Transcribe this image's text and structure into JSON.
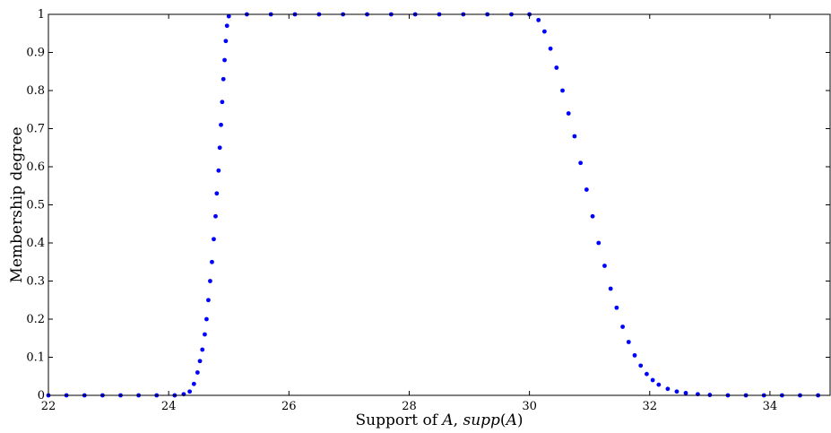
{
  "chart_data": {
    "type": "scatter",
    "xlabel_parts": [
      "Support of ",
      "A",
      ", ",
      "supp",
      "(",
      "A",
      ")"
    ],
    "ylabel": "Membership degree",
    "xlim": [
      22,
      35
    ],
    "ylim": [
      0,
      1
    ],
    "x_ticks": [
      22,
      24,
      26,
      28,
      30,
      32,
      34
    ],
    "x_tick_labels": [
      "22",
      "24",
      "26",
      "28",
      "30",
      "32",
      "34"
    ],
    "y_ticks": [
      0,
      0.1,
      0.2,
      0.3,
      0.4,
      0.5,
      0.6,
      0.7,
      0.8,
      0.9,
      1
    ],
    "y_tick_labels": [
      "0",
      "0.1",
      "0.2",
      "0.3",
      "0.4",
      "0.5",
      "0.6",
      "0.7",
      "0.8",
      "0.9",
      "1"
    ],
    "grid": false,
    "marker_color": "#0000ff",
    "series": [
      {
        "points": [
          [
            22.0,
            0
          ],
          [
            22.3,
            0
          ],
          [
            22.6,
            0
          ],
          [
            22.9,
            0
          ],
          [
            23.2,
            0
          ],
          [
            23.5,
            0
          ],
          [
            23.8,
            0
          ],
          [
            24.1,
            0
          ],
          [
            24.25,
            0.003
          ],
          [
            24.35,
            0.01
          ],
          [
            24.42,
            0.03
          ],
          [
            24.48,
            0.06
          ],
          [
            24.52,
            0.09
          ],
          [
            24.56,
            0.12
          ],
          [
            24.6,
            0.16
          ],
          [
            24.63,
            0.2
          ],
          [
            24.66,
            0.25
          ],
          [
            24.69,
            0.3
          ],
          [
            24.72,
            0.35
          ],
          [
            24.75,
            0.41
          ],
          [
            24.78,
            0.47
          ],
          [
            24.8,
            0.53
          ],
          [
            24.83,
            0.59
          ],
          [
            24.85,
            0.65
          ],
          [
            24.87,
            0.71
          ],
          [
            24.89,
            0.77
          ],
          [
            24.91,
            0.83
          ],
          [
            24.93,
            0.88
          ],
          [
            24.95,
            0.93
          ],
          [
            24.97,
            0.97
          ],
          [
            25.0,
            0.995
          ],
          [
            25.3,
            1
          ],
          [
            25.7,
            1
          ],
          [
            26.1,
            1
          ],
          [
            26.5,
            1
          ],
          [
            26.9,
            1
          ],
          [
            27.3,
            1
          ],
          [
            27.7,
            1
          ],
          [
            28.1,
            1
          ],
          [
            28.5,
            1
          ],
          [
            28.9,
            1
          ],
          [
            29.3,
            1
          ],
          [
            29.7,
            1
          ],
          [
            30.0,
            1
          ],
          [
            30.15,
            0.985
          ],
          [
            30.25,
            0.955
          ],
          [
            30.35,
            0.91
          ],
          [
            30.45,
            0.86
          ],
          [
            30.55,
            0.8
          ],
          [
            30.65,
            0.74
          ],
          [
            30.75,
            0.68
          ],
          [
            30.85,
            0.61
          ],
          [
            30.95,
            0.54
          ],
          [
            31.05,
            0.47
          ],
          [
            31.15,
            0.4
          ],
          [
            31.25,
            0.34
          ],
          [
            31.35,
            0.28
          ],
          [
            31.45,
            0.23
          ],
          [
            31.55,
            0.18
          ],
          [
            31.65,
            0.14
          ],
          [
            31.75,
            0.105
          ],
          [
            31.85,
            0.078
          ],
          [
            31.95,
            0.056
          ],
          [
            32.05,
            0.04
          ],
          [
            32.15,
            0.028
          ],
          [
            32.3,
            0.017
          ],
          [
            32.45,
            0.01
          ],
          [
            32.6,
            0.006
          ],
          [
            32.8,
            0.003
          ],
          [
            33.0,
            0.001
          ],
          [
            33.3,
            0
          ],
          [
            33.6,
            0
          ],
          [
            33.9,
            0
          ],
          [
            34.2,
            0
          ],
          [
            34.5,
            0
          ],
          [
            34.8,
            0
          ]
        ]
      }
    ]
  }
}
